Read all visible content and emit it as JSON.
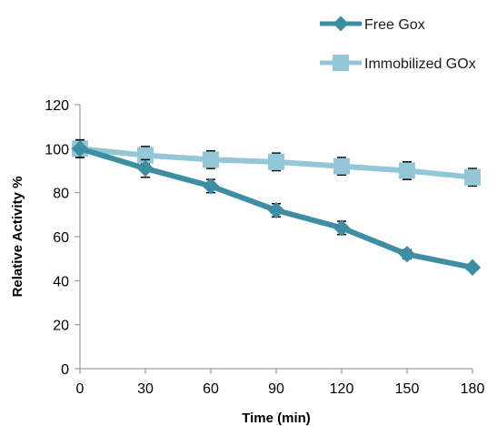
{
  "chart_data": {
    "type": "line",
    "title": "",
    "xlabel": "Time (min)",
    "ylabel": "Relative Activity %",
    "x": [
      0,
      30,
      60,
      90,
      120,
      150,
      180
    ],
    "xlim": [
      0,
      180
    ],
    "ylim": [
      0,
      120
    ],
    "yticks": [
      0,
      20,
      40,
      60,
      80,
      100,
      120
    ],
    "xticks": [
      0,
      30,
      60,
      90,
      120,
      150,
      180
    ],
    "grid": false,
    "legend_position": "top-right",
    "series": [
      {
        "name": "Free Gox",
        "values": [
          100,
          91,
          83,
          72,
          64,
          52,
          46
        ],
        "error": [
          4,
          4,
          3,
          3,
          3,
          2,
          1
        ],
        "color": "#3d8ea3",
        "marker": "diamond"
      },
      {
        "name": "Immobilized GOx",
        "values": [
          100,
          97,
          95,
          94,
          92,
          90,
          87
        ],
        "error": [
          4,
          4,
          4,
          4,
          4,
          4,
          4
        ],
        "color": "#93c6d6",
        "marker": "square"
      }
    ]
  }
}
